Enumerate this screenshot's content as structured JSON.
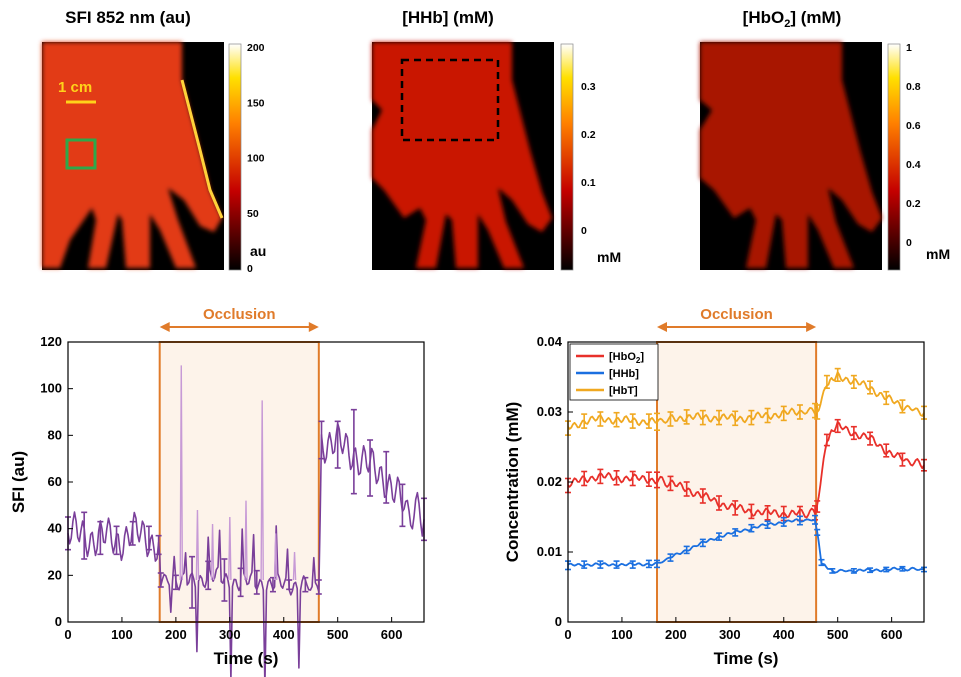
{
  "colors": {
    "occlusion": "#e07b2a",
    "occlusion_fill": "#fdf3ea",
    "sfi_line": "#7a3f9a",
    "sfi_line_occ": "#c79ad6",
    "hbo2": "#e8302a",
    "hhb": "#1a6fe0",
    "hbt": "#f0a820",
    "scale_bar": "#ffd21a",
    "roi_green": "#2ea84a",
    "roi_black": "#111111"
  },
  "maps": [
    {
      "title_html": "SFI 852 nm (au)",
      "colorbar_ticks": [
        "200",
        "150",
        "100",
        "50",
        "0"
      ],
      "colorbar_unit": "au",
      "scale_label": "1 cm"
    },
    {
      "title_html": "[HHb] (mM)",
      "colorbar_ticks": [
        "0.3",
        "0.2",
        "0.1",
        "0"
      ],
      "colorbar_unit": "mM"
    },
    {
      "title_pre": "[HbO",
      "title_sub": "2",
      "title_post": "] (mM)",
      "colorbar_ticks": [
        "1",
        "0.8",
        "0.6",
        "0.4",
        "0.2",
        "0"
      ],
      "colorbar_unit": "mM"
    }
  ],
  "occlusion_label": "Occlusion",
  "chart_data": [
    {
      "type": "line",
      "xlabel": "Time (s)",
      "ylabel": "SFI (au)",
      "xlim": [
        0,
        660
      ],
      "ylim": [
        0,
        120
      ],
      "xticks": [
        0,
        100,
        200,
        300,
        400,
        500,
        600
      ],
      "yticks": [
        0,
        20,
        40,
        60,
        80,
        100,
        120
      ],
      "occlusion": [
        170,
        465
      ],
      "series": [
        {
          "x": [
            0,
            30,
            60,
            90,
            120,
            150,
            168,
            172,
            200,
            230,
            260,
            290,
            320,
            350,
            380,
            410,
            440,
            465,
            470,
            500,
            530,
            560,
            590,
            620,
            660
          ],
          "y": [
            38,
            37,
            36,
            35,
            38,
            36,
            33,
            18,
            17,
            17,
            20,
            18,
            17,
            17,
            16,
            16,
            16,
            15,
            78,
            76,
            73,
            66,
            62,
            50,
            44
          ],
          "err": [
            7,
            10,
            7,
            6,
            5,
            5,
            4,
            3,
            3,
            11,
            6,
            9,
            6,
            5,
            3,
            2,
            3,
            3,
            8,
            10,
            18,
            12,
            11,
            9,
            9
          ]
        }
      ]
    },
    {
      "type": "line",
      "xlabel": "Time (s)",
      "ylabel": "Concentration (mM)",
      "xlim": [
        0,
        660
      ],
      "ylim": [
        0,
        0.04
      ],
      "xticks": [
        0,
        100,
        200,
        300,
        400,
        500,
        600
      ],
      "yticks": [
        0,
        0.01,
        0.02,
        0.03,
        0.04
      ],
      "occlusion": [
        165,
        460
      ],
      "legend_position": "top-left",
      "series": [
        {
          "name_pre": "[HbO",
          "name_sub": "2",
          "name_post": "]",
          "x": [
            0,
            30,
            60,
            90,
            120,
            150,
            165,
            190,
            220,
            250,
            280,
            310,
            340,
            370,
            400,
            430,
            458,
            462,
            480,
            500,
            530,
            560,
            590,
            620,
            660
          ],
          "y": [
            0.0195,
            0.0205,
            0.0208,
            0.0206,
            0.0205,
            0.0204,
            0.0203,
            0.0198,
            0.019,
            0.018,
            0.017,
            0.0163,
            0.0158,
            0.0156,
            0.0155,
            0.0155,
            0.0156,
            0.0165,
            0.026,
            0.028,
            0.027,
            0.0262,
            0.0245,
            0.0232,
            0.0224
          ],
          "err": [
            0.001,
            0.001,
            0.001,
            0.001,
            0.001,
            0.001,
            0.0011,
            0.001,
            0.001,
            0.001,
            0.001,
            0.001,
            0.001,
            0.001,
            0.001,
            0.001,
            0.001,
            0.0008,
            0.0008,
            0.0009,
            0.0009,
            0.0009,
            0.0009,
            0.0009,
            0.0008
          ]
        },
        {
          "name": "[HHb]",
          "x": [
            0,
            30,
            60,
            90,
            120,
            150,
            165,
            190,
            220,
            250,
            280,
            310,
            340,
            370,
            400,
            430,
            458,
            462,
            470,
            490,
            530,
            560,
            590,
            620,
            660
          ],
          "y": [
            0.0081,
            0.0082,
            0.0082,
            0.0082,
            0.0082,
            0.0083,
            0.0083,
            0.0092,
            0.0103,
            0.0113,
            0.0122,
            0.0128,
            0.0134,
            0.0139,
            0.0143,
            0.0145,
            0.0146,
            0.0128,
            0.0085,
            0.0073,
            0.0073,
            0.0074,
            0.0075,
            0.0076,
            0.0075
          ],
          "err": [
            0.0006,
            0.0005,
            0.0005,
            0.0005,
            0.0005,
            0.0005,
            0.0005,
            0.0005,
            0.0005,
            0.0005,
            0.0005,
            0.0005,
            0.0005,
            0.0005,
            0.0006,
            0.0006,
            0.0006,
            0.0004,
            0.0004,
            0.0003,
            0.0003,
            0.0003,
            0.0003,
            0.0003,
            0.0003
          ]
        },
        {
          "name": "[HbT]",
          "x": [
            0,
            30,
            60,
            90,
            120,
            150,
            165,
            190,
            220,
            250,
            280,
            310,
            340,
            370,
            400,
            430,
            458,
            462,
            480,
            500,
            530,
            560,
            590,
            620,
            660
          ],
          "y": [
            0.0277,
            0.0287,
            0.029,
            0.0289,
            0.0287,
            0.0287,
            0.0286,
            0.029,
            0.0293,
            0.0292,
            0.0292,
            0.0291,
            0.0292,
            0.0295,
            0.0298,
            0.03,
            0.0302,
            0.03,
            0.0343,
            0.0353,
            0.0343,
            0.0335,
            0.032,
            0.0308,
            0.0299
          ],
          "err": [
            0.001,
            0.001,
            0.001,
            0.001,
            0.001,
            0.001,
            0.0012,
            0.001,
            0.001,
            0.001,
            0.001,
            0.001,
            0.001,
            0.001,
            0.001,
            0.001,
            0.001,
            0.001,
            0.0009,
            0.0009,
            0.0009,
            0.0009,
            0.0009,
            0.0009,
            0.0009
          ]
        }
      ]
    }
  ]
}
